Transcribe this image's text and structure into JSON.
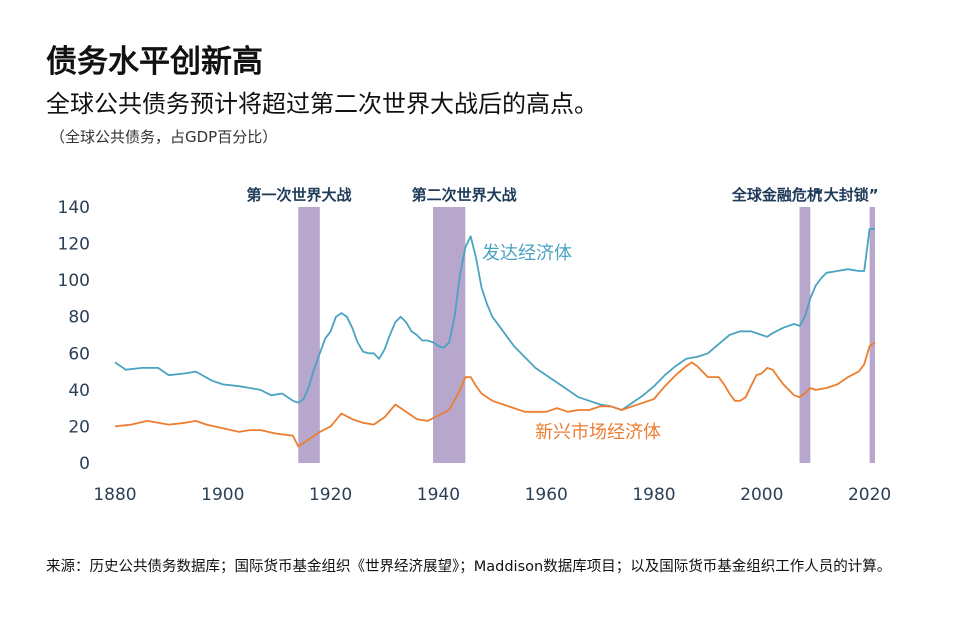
{
  "title": "债务水平创新高",
  "subtitle": "全球公共债务预计将超过第二次世界大战后的高点。",
  "unit_note": "（全球公共债务，占GDP百分比）",
  "source_note": "来源：历史公共债务数据库；国际货币基金组织《世界经济展望》；Maddison数据库项目；以及国际货币基金组织工作人员的计算。",
  "colors": {
    "advanced": "#4aa3c1",
    "emerging": "#ed7d31",
    "shade": "#b8a7cc",
    "annotation": "#1f3b5a"
  },
  "chart_data": {
    "type": "line",
    "title": "债务水平创新高",
    "subtitle": "全球公共债务预计将超过第二次世界大战后的高点。",
    "ylabel": "（全球公共债务，占GDP百分比）",
    "xlim": [
      1880,
      2021
    ],
    "ylim": [
      0,
      140
    ],
    "x_ticks": [
      1880,
      1900,
      1920,
      1940,
      1960,
      1980,
      2000,
      2020
    ],
    "y_ticks": [
      0,
      20,
      40,
      60,
      80,
      100,
      120,
      140
    ],
    "grid": false,
    "shaded_periods": [
      {
        "label": "第一次世界大战",
        "start": 1914,
        "end": 1918
      },
      {
        "label": "第二次世界大战",
        "start": 1939,
        "end": 1945
      },
      {
        "label": "全球金融危机",
        "start": 2007,
        "end": 2009
      },
      {
        "label": "“大封锁”",
        "start": 2020,
        "end": 2021
      }
    ],
    "series": [
      {
        "name": "发达经济体",
        "points": [
          [
            1880,
            55
          ],
          [
            1882,
            51
          ],
          [
            1885,
            52
          ],
          [
            1888,
            52
          ],
          [
            1890,
            48
          ],
          [
            1893,
            49
          ],
          [
            1895,
            50
          ],
          [
            1898,
            45
          ],
          [
            1900,
            43
          ],
          [
            1903,
            42
          ],
          [
            1905,
            41
          ],
          [
            1907,
            40
          ],
          [
            1909,
            37
          ],
          [
            1911,
            38
          ],
          [
            1913,
            34
          ],
          [
            1914,
            33
          ],
          [
            1915,
            35
          ],
          [
            1916,
            42
          ],
          [
            1917,
            52
          ],
          [
            1918,
            60
          ],
          [
            1919,
            68
          ],
          [
            1920,
            72
          ],
          [
            1921,
            80
          ],
          [
            1922,
            82
          ],
          [
            1923,
            80
          ],
          [
            1924,
            74
          ],
          [
            1925,
            66
          ],
          [
            1926,
            61
          ],
          [
            1927,
            60
          ],
          [
            1928,
            60
          ],
          [
            1929,
            57
          ],
          [
            1930,
            62
          ],
          [
            1931,
            70
          ],
          [
            1932,
            77
          ],
          [
            1933,
            80
          ],
          [
            1934,
            77
          ],
          [
            1935,
            72
          ],
          [
            1936,
            70
          ],
          [
            1937,
            67
          ],
          [
            1938,
            67
          ],
          [
            1939,
            66
          ],
          [
            1940,
            64
          ],
          [
            1941,
            63
          ],
          [
            1942,
            66
          ],
          [
            1943,
            80
          ],
          [
            1944,
            103
          ],
          [
            1945,
            118
          ],
          [
            1946,
            124
          ],
          [
            1947,
            112
          ],
          [
            1948,
            96
          ],
          [
            1949,
            87
          ],
          [
            1950,
            80
          ],
          [
            1952,
            72
          ],
          [
            1954,
            64
          ],
          [
            1956,
            58
          ],
          [
            1958,
            52
          ],
          [
            1960,
            48
          ],
          [
            1962,
            44
          ],
          [
            1964,
            40
          ],
          [
            1966,
            36
          ],
          [
            1968,
            34
          ],
          [
            1970,
            32
          ],
          [
            1972,
            31
          ],
          [
            1974,
            29
          ],
          [
            1976,
            33
          ],
          [
            1978,
            37
          ],
          [
            1980,
            42
          ],
          [
            1982,
            48
          ],
          [
            1984,
            53
          ],
          [
            1986,
            57
          ],
          [
            1988,
            58
          ],
          [
            1990,
            60
          ],
          [
            1992,
            65
          ],
          [
            1994,
            70
          ],
          [
            1996,
            72
          ],
          [
            1998,
            72
          ],
          [
            2000,
            70
          ],
          [
            2001,
            69
          ],
          [
            2002,
            71
          ],
          [
            2004,
            74
          ],
          [
            2006,
            76
          ],
          [
            2007,
            75
          ],
          [
            2008,
            80
          ],
          [
            2009,
            90
          ],
          [
            2010,
            97
          ],
          [
            2011,
            101
          ],
          [
            2012,
            104
          ],
          [
            2014,
            105
          ],
          [
            2016,
            106
          ],
          [
            2018,
            105
          ],
          [
            2019,
            105
          ],
          [
            2020,
            128
          ],
          [
            2021,
            128
          ]
        ]
      },
      {
        "name": "新兴市场经济体",
        "points": [
          [
            1880,
            20
          ],
          [
            1883,
            21
          ],
          [
            1886,
            23
          ],
          [
            1888,
            22
          ],
          [
            1890,
            21
          ],
          [
            1893,
            22
          ],
          [
            1895,
            23
          ],
          [
            1897,
            21
          ],
          [
            1900,
            19
          ],
          [
            1903,
            17
          ],
          [
            1905,
            18
          ],
          [
            1907,
            18
          ],
          [
            1910,
            16
          ],
          [
            1913,
            15
          ],
          [
            1914,
            9
          ],
          [
            1916,
            13
          ],
          [
            1918,
            17
          ],
          [
            1920,
            20
          ],
          [
            1922,
            27
          ],
          [
            1924,
            24
          ],
          [
            1926,
            22
          ],
          [
            1928,
            21
          ],
          [
            1930,
            25
          ],
          [
            1932,
            32
          ],
          [
            1934,
            28
          ],
          [
            1936,
            24
          ],
          [
            1938,
            23
          ],
          [
            1940,
            26
          ],
          [
            1942,
            29
          ],
          [
            1944,
            40
          ],
          [
            1945,
            47
          ],
          [
            1946,
            47
          ],
          [
            1947,
            42
          ],
          [
            1948,
            38
          ],
          [
            1950,
            34
          ],
          [
            1952,
            32
          ],
          [
            1954,
            30
          ],
          [
            1956,
            28
          ],
          [
            1958,
            28
          ],
          [
            1960,
            28
          ],
          [
            1962,
            30
          ],
          [
            1964,
            28
          ],
          [
            1966,
            29
          ],
          [
            1968,
            29
          ],
          [
            1970,
            31
          ],
          [
            1972,
            31
          ],
          [
            1974,
            29
          ],
          [
            1976,
            31
          ],
          [
            1978,
            33
          ],
          [
            1980,
            35
          ],
          [
            1982,
            42
          ],
          [
            1984,
            48
          ],
          [
            1986,
            53
          ],
          [
            1987,
            55
          ],
          [
            1988,
            53
          ],
          [
            1989,
            50
          ],
          [
            1990,
            47
          ],
          [
            1992,
            47
          ],
          [
            1993,
            43
          ],
          [
            1994,
            38
          ],
          [
            1995,
            34
          ],
          [
            1996,
            34
          ],
          [
            1997,
            36
          ],
          [
            1998,
            42
          ],
          [
            1999,
            48
          ],
          [
            2000,
            49
          ],
          [
            2001,
            52
          ],
          [
            2002,
            51
          ],
          [
            2003,
            47
          ],
          [
            2004,
            43
          ],
          [
            2005,
            40
          ],
          [
            2006,
            37
          ],
          [
            2007,
            36
          ],
          [
            2008,
            38
          ],
          [
            2009,
            41
          ],
          [
            2010,
            40
          ],
          [
            2012,
            41
          ],
          [
            2014,
            43
          ],
          [
            2016,
            47
          ],
          [
            2018,
            50
          ],
          [
            2019,
            54
          ],
          [
            2020,
            64
          ],
          [
            2021,
            66
          ]
        ]
      }
    ]
  }
}
